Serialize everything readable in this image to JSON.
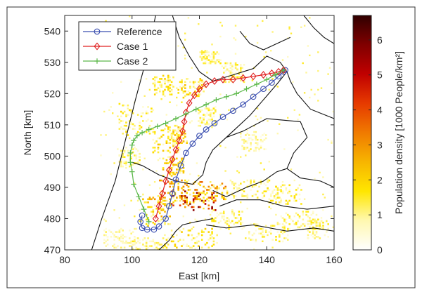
{
  "chart_data": {
    "type": "line",
    "title": "",
    "xlabel": "East [km]",
    "ylabel": "North [km]",
    "xlim": [
      80,
      160
    ],
    "ylim": [
      470,
      545
    ],
    "xticks": [
      80,
      100,
      120,
      140,
      160
    ],
    "yticks": [
      470,
      480,
      490,
      500,
      510,
      520,
      530,
      540
    ],
    "legend_position": "top-left",
    "series": [
      {
        "name": "Reference",
        "color": "#3b4fb0",
        "marker": "circle",
        "x": [
          103,
          102.5,
          103,
          104.5,
          106.5,
          108,
          110,
          111,
          112,
          113,
          114.5,
          116,
          118,
          120,
          122,
          124.5,
          127,
          130,
          133,
          136,
          139,
          141.5,
          143.5,
          145,
          145.5
        ],
        "y": [
          481,
          479,
          477,
          476.5,
          476.5,
          477.5,
          480,
          484,
          488,
          492.5,
          497,
          501,
          504,
          506.5,
          508.5,
          510.5,
          512.5,
          514.5,
          516.5,
          519,
          521.5,
          523.5,
          525.5,
          527,
          527.5
        ]
      },
      {
        "name": "Case 1",
        "color": "#e02020",
        "marker": "diamond",
        "x": [
          107,
          108,
          109,
          110,
          111,
          112,
          113,
          114,
          115,
          115.5,
          116,
          117,
          118.5,
          120,
          122,
          124.5,
          127,
          130,
          133,
          136,
          139,
          141.5,
          143.5,
          145
        ],
        "y": [
          480,
          484,
          488,
          492,
          495.5,
          499,
          502,
          505,
          508,
          511,
          514,
          517,
          519.5,
          521.5,
          523,
          524,
          524.5,
          524.5,
          525,
          525.5,
          526,
          526.5,
          527,
          527.5
        ]
      },
      {
        "name": "Case 2",
        "color": "#5cb84a",
        "marker": "plus",
        "x": [
          105,
          103.5,
          102,
          100.5,
          100,
          99.5,
          99.5,
          100,
          100.5,
          101.5,
          103,
          105,
          107.5,
          110,
          113,
          116,
          119,
          122,
          125,
          128,
          131,
          134,
          137,
          140,
          142.5,
          145
        ],
        "y": [
          479,
          483,
          487,
          491,
          495,
          498,
          501,
          503.5,
          505,
          506.5,
          507.5,
          508.5,
          509.5,
          510.5,
          512,
          513.5,
          515,
          516.5,
          518,
          519,
          520,
          521.5,
          523,
          524.5,
          526,
          527.5
        ]
      }
    ],
    "colorbar": {
      "label": "Population density [1000 People/km²]",
      "range": [
        0,
        6.7
      ],
      "ticks": [
        0,
        1,
        2,
        3,
        4,
        5,
        6
      ],
      "colormap": [
        "#ffffff",
        "#fff8b0",
        "#ffe600",
        "#f7b500",
        "#f07a00",
        "#e63a00",
        "#c00000",
        "#800000",
        "#300000"
      ]
    },
    "map_features": {
      "base_color": "#ffffff",
      "outline_color": "#111111"
    }
  }
}
